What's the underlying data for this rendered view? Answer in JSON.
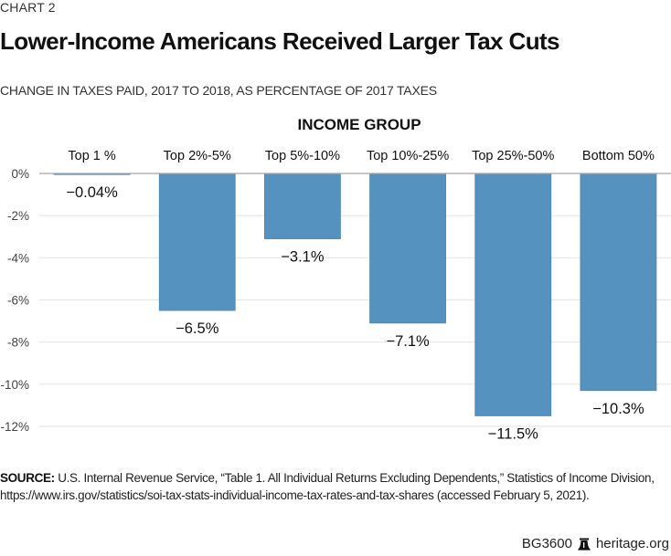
{
  "header": {
    "chart_number": "CHART 2",
    "title": "Lower-Income Americans Received Larger Tax Cuts",
    "subtitle": "CHANGE IN TAXES PAID, 2017 TO 2018, AS PERCENTAGE OF 2017 TAXES"
  },
  "chart_data": {
    "type": "bar",
    "title": "Lower-Income Americans Received Larger Tax Cuts",
    "subtitle": "CHANGE IN TAXES PAID, 2017 TO 2018, AS PERCENTAGE OF 2017 TAXES",
    "xlabel": "INCOME GROUP",
    "ylabel": "",
    "categories": [
      "Top 1 %",
      "Top 2%-5%",
      "Top 5%-10%",
      "Top 10%-25%",
      "Top 25%-50%",
      "Bottom 50%"
    ],
    "values": [
      -0.04,
      -6.5,
      -3.1,
      -7.1,
      -11.5,
      -10.3
    ],
    "data_labels": [
      "−0.04%",
      "−6.5%",
      "−3.1%",
      "−7.1%",
      "−11.5%",
      "−10.3%"
    ],
    "ylim": [
      -12,
      0
    ],
    "yticks": [
      0,
      -2,
      -4,
      -6,
      -8,
      -10,
      -12
    ],
    "ytick_labels": [
      "0%",
      "-2%",
      "-4%",
      "-6%",
      "-8%",
      "-10%",
      "-12%"
    ],
    "grid": true,
    "bar_color": "#5592bf",
    "category_axis_position": "top"
  },
  "footer": {
    "source_label": "SOURCE:",
    "source_text_line1": " U.S. Internal Revenue Service, “Table 1. All Individual Returns Excluding Dependents,” Statistics of Income Division,",
    "source_text_line2": "https://www.irs.gov/statistics/soi-tax-stats-individual-income-tax-rates-and-tax-shares (accessed February 5, 2021).",
    "report_id": "BG3600",
    "logo_icon": "liberty-bell-icon",
    "site": "heritage.org"
  }
}
